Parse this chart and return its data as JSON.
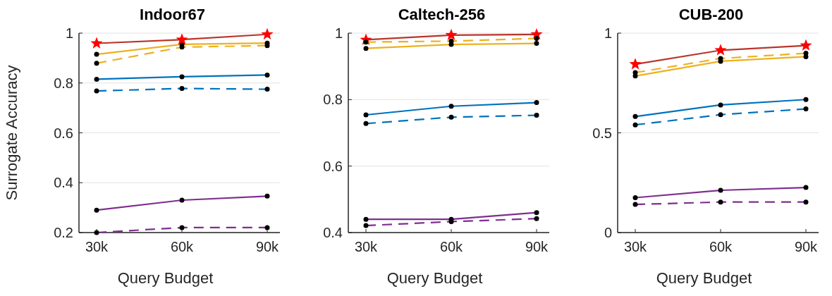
{
  "chart_data": [
    {
      "type": "line",
      "title": "Indoor67",
      "xlabel": "Query Budget",
      "ylabel": "Surrogate Accuracy",
      "categories": [
        "30k",
        "60k",
        "90k"
      ],
      "ylim": [
        0.2,
        1
      ],
      "yticks": [
        0.2,
        0.4,
        0.6,
        0.8,
        1
      ],
      "grid": "y",
      "series": [
        {
          "color": "#7e2f8e",
          "values": [
            0.29,
            0.33,
            0.346
          ],
          "line_style": "solid",
          "marker": "circle"
        },
        {
          "color": "#7e2f8e",
          "values": [
            0.2,
            0.22,
            0.22
          ],
          "line_style": "dashed",
          "marker": "circle"
        },
        {
          "color": "#0072bd",
          "values": [
            0.815,
            0.825,
            0.832
          ],
          "line_style": "solid",
          "marker": "circle"
        },
        {
          "color": "#0072bd",
          "values": [
            0.768,
            0.778,
            0.775
          ],
          "line_style": "dashed",
          "marker": "circle"
        },
        {
          "color": "#edb120",
          "values": [
            0.915,
            0.955,
            0.96
          ],
          "line_style": "solid",
          "marker": "circle"
        },
        {
          "color": "#edb120",
          "values": [
            0.879,
            0.944,
            0.95
          ],
          "line_style": "dashed",
          "marker": "circle"
        },
        {
          "color": "#b8352a",
          "values": [
            0.959,
            0.974,
            0.995
          ],
          "line_style": "solid",
          "marker": "star"
        }
      ]
    },
    {
      "type": "line",
      "title": "Caltech-256",
      "xlabel": "Query Budget",
      "categories": [
        "30k",
        "60k",
        "90k"
      ],
      "ylim": [
        0.4,
        1
      ],
      "yticks": [
        0.4,
        0.6,
        0.8,
        1
      ],
      "grid": "y",
      "series": [
        {
          "color": "#b8352a",
          "values": [
            0.98,
            0.994,
            0.996
          ],
          "line_style": "solid",
          "marker": "star"
        },
        {
          "color": "#7e2f8e",
          "values": [
            0.44,
            0.44,
            0.46
          ],
          "line_style": "solid",
          "marker": "circle"
        },
        {
          "color": "#7e2f8e",
          "values": [
            0.421,
            0.433,
            0.442
          ],
          "line_style": "dashed",
          "marker": "circle"
        },
        {
          "color": "#0072bd",
          "values": [
            0.754,
            0.78,
            0.791
          ],
          "line_style": "solid",
          "marker": "circle"
        },
        {
          "color": "#0072bd",
          "values": [
            0.728,
            0.747,
            0.753
          ],
          "line_style": "dashed",
          "marker": "circle"
        },
        {
          "color": "#edb120",
          "values": [
            0.954,
            0.966,
            0.969
          ],
          "line_style": "solid",
          "marker": "circle"
        },
        {
          "color": "#edb120",
          "values": [
            0.973,
            0.976,
            0.984
          ],
          "line_style": "dashed",
          "marker": "circle"
        }
      ]
    },
    {
      "type": "line",
      "title": "CUB-200",
      "xlabel": "Query Budget",
      "categories": [
        "30k",
        "60k",
        "90k"
      ],
      "ylim": [
        0,
        1
      ],
      "yticks": [
        0,
        0.5,
        1
      ],
      "grid": "y",
      "series": [
        {
          "color": "#7e2f8e",
          "values": [
            0.175,
            0.212,
            0.226
          ],
          "line_style": "solid",
          "marker": "circle"
        },
        {
          "color": "#7e2f8e",
          "values": [
            0.141,
            0.153,
            0.153
          ],
          "line_style": "dashed",
          "marker": "circle"
        },
        {
          "color": "#0072bd",
          "values": [
            0.582,
            0.64,
            0.667
          ],
          "line_style": "solid",
          "marker": "circle"
        },
        {
          "color": "#0072bd",
          "values": [
            0.54,
            0.591,
            0.62
          ],
          "line_style": "dashed",
          "marker": "circle"
        },
        {
          "color": "#edb120",
          "values": [
            0.785,
            0.859,
            0.882
          ],
          "line_style": "solid",
          "marker": "circle"
        },
        {
          "color": "#edb120",
          "values": [
            0.802,
            0.873,
            0.899
          ],
          "line_style": "dashed",
          "marker": "circle"
        },
        {
          "color": "#b8352a",
          "values": [
            0.844,
            0.914,
            0.938
          ],
          "line_style": "solid",
          "marker": "star"
        }
      ]
    }
  ]
}
